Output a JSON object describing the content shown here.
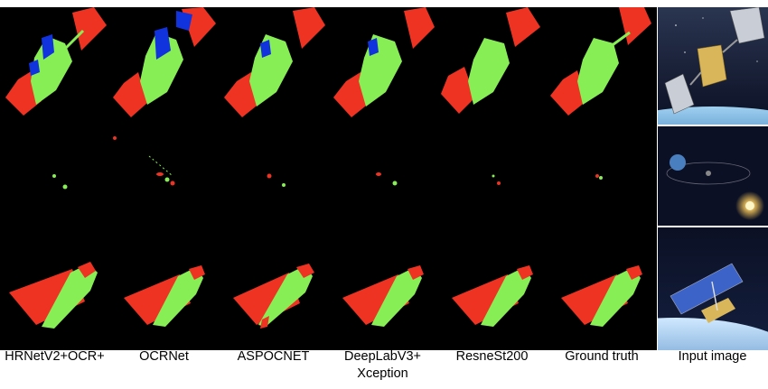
{
  "figure": {
    "columns": [
      {
        "label": "HRNetV2+OCR+"
      },
      {
        "label": "OCRNet"
      },
      {
        "label": "ASPOCNET"
      },
      {
        "label": "DeepLabV3+\nXception"
      },
      {
        "label": "ResneSt200"
      },
      {
        "label": "Ground truth"
      },
      {
        "label": "Input image"
      }
    ],
    "rows": 3,
    "colors": {
      "background": "#000000",
      "class_red": "#ee3322",
      "class_green": "#88ee55",
      "class_blue": "#1133dd",
      "space_dark": "#0b1024",
      "earth_blue": "#2d6fb0",
      "solar_panel": "#c9ced6",
      "gold_body": "#d9b65a",
      "sun": "#fff6c8"
    }
  }
}
